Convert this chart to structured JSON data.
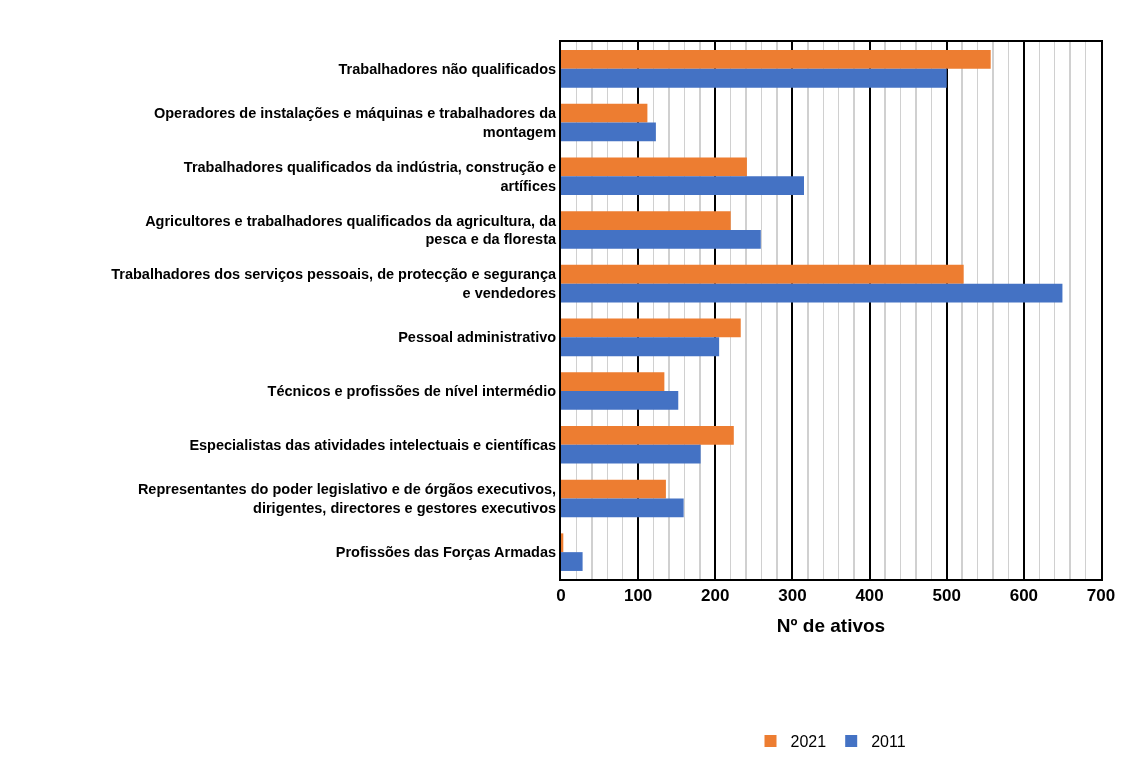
{
  "chart_data": {
    "type": "bar",
    "orientation": "horizontal",
    "xlabel": "Nº de ativos",
    "categories": [
      "Trabalhadores não qualificados",
      "Operadores de instalações e máquinas e trabalhadores da montagem",
      "Trabalhadores qualificados da indústria, construção e artífices",
      "Agricultores e trabalhadores qualificados da agricultura, da pesca e da floresta",
      "Trabalhadores dos serviços pessoais, de protecção e segurança e vendedores",
      "Pessoal administrativo",
      "Técnicos e profissões de nível intermédio",
      "Especialistas das atividades intelectuais e científicas",
      "Representantes do poder legislativo e de órgãos executivos, dirigentes, directores e gestores executivos",
      "Profissões das Forças Armadas"
    ],
    "series": [
      {
        "name": "2021",
        "color": "#ed7d31",
        "values": [
          557,
          112,
          241,
          220,
          522,
          233,
          134,
          224,
          136,
          3
        ]
      },
      {
        "name": "2011",
        "color": "#4472c4",
        "values": [
          500,
          123,
          315,
          259,
          650,
          205,
          152,
          181,
          159,
          28
        ]
      }
    ],
    "xlim": [
      0,
      700
    ],
    "xticks": [
      0,
      {
        "value": 20,
        "label": null
      },
      {
        "value": 40,
        "label": null
      },
      {
        "value": 60,
        "label": null
      },
      {
        "value": 80,
        "label": null
      },
      100,
      {
        "value": 120,
        "label": null
      },
      {
        "value": 140,
        "label": null
      },
      {
        "value": 160,
        "label": null
      },
      {
        "value": 180,
        "label": null
      },
      200,
      {
        "value": 220,
        "label": null
      },
      {
        "value": 240,
        "label": null
      },
      {
        "value": 260,
        "label": null
      },
      {
        "value": 280,
        "label": null
      },
      300,
      {
        "value": 320,
        "label": null
      },
      {
        "value": 340,
        "label": null
      },
      {
        "value": 360,
        "label": null
      },
      {
        "value": 380,
        "label": null
      },
      400,
      {
        "value": 420,
        "label": null
      },
      {
        "value": 440,
        "label": null
      },
      {
        "value": 460,
        "label": null
      },
      {
        "value": 480,
        "label": null
      },
      500,
      {
        "value": 520,
        "label": null
      },
      {
        "value": 540,
        "label": null
      },
      {
        "value": 560,
        "label": null
      },
      {
        "value": 580,
        "label": null
      },
      600,
      {
        "value": 620,
        "label": null
      },
      {
        "value": 640,
        "label": null
      },
      {
        "value": 660,
        "label": null
      },
      {
        "value": 680,
        "label": null
      },
      700
    ],
    "grid": "x",
    "legend": "bottom"
  }
}
